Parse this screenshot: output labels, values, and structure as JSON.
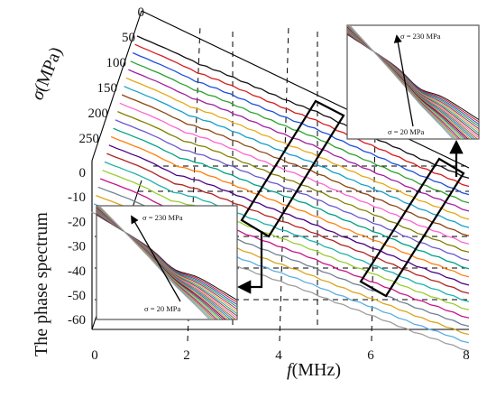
{
  "chart_data": {
    "type": "line",
    "xlabel_italic": "f",
    "xlabel_unit": "(MHz)",
    "ylabel": "The phase spectrum",
    "zlabel_italic": "σ",
    "zlabel_unit": "(MPa)",
    "x_ticks": [
      "0",
      "2",
      "4",
      "6",
      "8"
    ],
    "y_ticks": [
      "0",
      "-10",
      "-20",
      "-30",
      "-40",
      "-50",
      "-60"
    ],
    "z_ticks": [
      "0",
      "50",
      "100",
      "150",
      "200",
      "250"
    ],
    "xlim": [
      0,
      8
    ],
    "ylim": [
      -60,
      0
    ],
    "zlim": [
      0,
      250
    ],
    "stress_values_MPa": [
      230,
      220,
      210,
      200,
      190,
      180,
      170,
      160,
      150,
      140,
      130,
      120,
      110,
      100,
      90,
      80,
      70,
      60,
      50,
      40,
      30,
      20
    ],
    "series_colors": [
      "#111111",
      "#d81b1b",
      "#1f4fd8",
      "#2ca02c",
      "#a020a0",
      "#e6a817",
      "#17a0c8",
      "#8b4513",
      "#ff66cc",
      "#808000",
      "#6a5acd",
      "#00a087",
      "#ff7f0e",
      "#4b0082",
      "#b22222",
      "#20b2aa",
      "#9acd32",
      "#c71585",
      "#708090",
      "#daa520",
      "#5dade2",
      "#9e9e9e"
    ],
    "insets": [
      {
        "top_label": "σ = 230 MPa",
        "bottom_label": "σ = 20 MPa"
      },
      {
        "top_label": "σ = 230 MPa",
        "bottom_label": "σ = 20 MPa"
      }
    ]
  }
}
